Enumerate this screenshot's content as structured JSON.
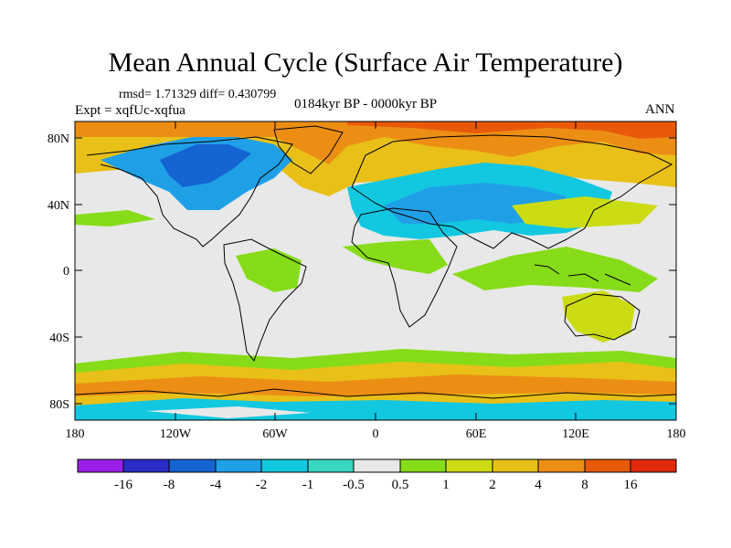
{
  "title": "Mean Annual Cycle (Surface Air Temperature)",
  "stats": "rmsd= 1.71329 diff= 0.430799",
  "experiment": "Expt = xqfUc-xqfua",
  "period": "0184kyr BP - 0000kyr BP",
  "season": "ANN",
  "lat_labels": [
    "80N",
    "40N",
    "0",
    "40S",
    "80S"
  ],
  "lon_labels": [
    "180",
    "120W",
    "60W",
    "0",
    "60E",
    "120E",
    "180"
  ],
  "colorbar": {
    "labels": [
      "-16",
      "-8",
      "-4",
      "-2",
      "-1",
      "-0.5",
      "0.5",
      "1",
      "2",
      "4",
      "8",
      "16"
    ],
    "colors": [
      "#9b1fe8",
      "#2b2bc8",
      "#1464d2",
      "#1fa0e6",
      "#12c8e0",
      "#38d8c0",
      "#e8e8e8",
      "#86dc18",
      "#ccdc14",
      "#e8c018",
      "#ec8e14",
      "#e85a0a",
      "#e02a0a"
    ]
  },
  "colors": {
    "ocean_background": "#e8e8e8",
    "coastline": "#000000"
  }
}
